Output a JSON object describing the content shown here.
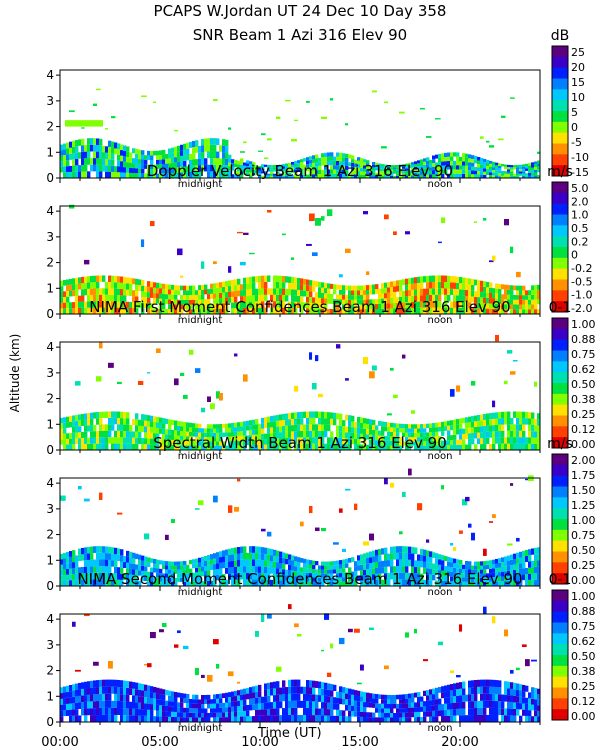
{
  "header": {
    "title_line1": "PCAPS W.Jordan UT  24 Dec 10 Day 358"
  },
  "axes": {
    "ylabel": "Altitude (km)",
    "xlabel": "Time (UT)",
    "x_ticks": [
      "00:00",
      "05:00",
      "10:00",
      "15:00",
      "20:00"
    ],
    "y_ticks": [
      "0",
      "1",
      "2",
      "3",
      "4"
    ],
    "markers": [
      "midnight",
      "noon"
    ]
  },
  "colors": {
    "ramp": [
      "#5a0080",
      "#3a00c8",
      "#0020ff",
      "#0080ff",
      "#00c8ff",
      "#00e0b0",
      "#00e040",
      "#80ff00",
      "#ffe000",
      "#ff9000",
      "#ff4000",
      "#e00000"
    ]
  },
  "chart_data": [
    {
      "type": "heatmap",
      "title": "SNR Beam 1 Azi 316 Elev 90",
      "unit": "dB",
      "colorbar_ticks": [
        "25",
        "20",
        "15",
        "10",
        "5",
        "0",
        "-5",
        "-10",
        "-15"
      ],
      "x_range": [
        0,
        24
      ],
      "y_range": [
        0,
        4.2
      ]
    },
    {
      "type": "heatmap",
      "title": "Doppler Velocity Beam 1 Azi 316 Elev 90",
      "unit": "m/s",
      "colorbar_ticks": [
        "5.0",
        "2.0",
        "1.0",
        "0.5",
        "0.2",
        "0",
        "-0.2",
        "-0.5",
        "-1.0",
        "-2.0"
      ],
      "x_range": [
        0,
        24
      ],
      "y_range": [
        0,
        4.2
      ]
    },
    {
      "type": "heatmap",
      "title": "NIMA First Moment Confidences Beam 1 Azi 316 Elev 90",
      "unit": "0-1",
      "colorbar_ticks": [
        "1.00",
        "0.88",
        "0.75",
        "0.62",
        "0.50",
        "0.38",
        "0.25",
        "0.12",
        "0.00"
      ],
      "x_range": [
        0,
        24
      ],
      "y_range": [
        0,
        4.2
      ]
    },
    {
      "type": "heatmap",
      "title": "Spectral Width Beam 1 Azi 316 Elev 90",
      "unit": "m/s",
      "colorbar_ticks": [
        "2.00",
        "1.75",
        "1.50",
        "1.25",
        "1.00",
        "0.75",
        "0.50",
        "0.25",
        "0.00"
      ],
      "x_range": [
        0,
        24
      ],
      "y_range": [
        0,
        4.2
      ]
    },
    {
      "type": "heatmap",
      "title": "NIMA Second Moment Confidences Beam 1 Azi 316 Elev 90",
      "unit": "0-1",
      "colorbar_ticks": [
        "1.00",
        "0.88",
        "0.75",
        "0.62",
        "0.50",
        "0.38",
        "0.25",
        "0.12",
        "0.00"
      ],
      "x_range": [
        0,
        24
      ],
      "y_range": [
        0,
        4.2
      ]
    }
  ]
}
